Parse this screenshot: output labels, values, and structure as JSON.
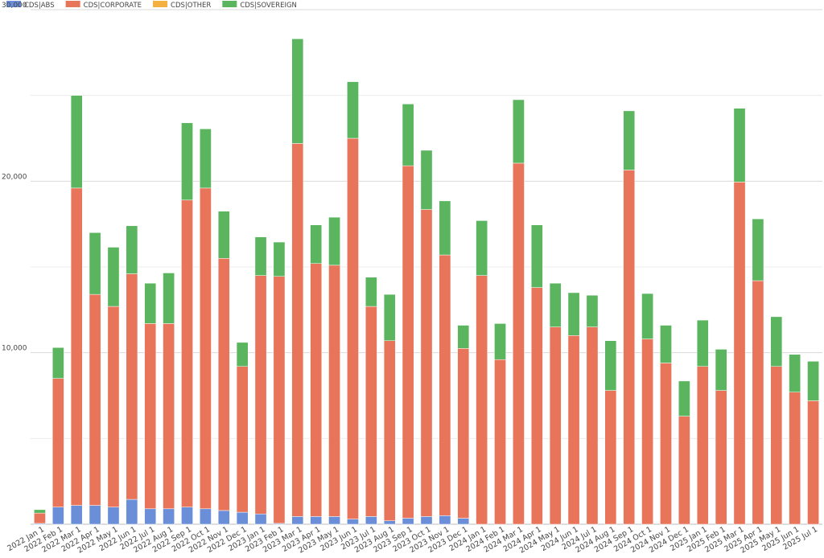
{
  "chart_data": {
    "type": "bar",
    "stacked": true,
    "title": "",
    "xlabel": "",
    "ylabel": "",
    "ylim": [
      0,
      30000
    ],
    "yticks": [
      {
        "value": 10000,
        "label": "10,000"
      },
      {
        "value": 20000,
        "label": "20,000"
      },
      {
        "value": 30000,
        "label": "30,000"
      }
    ],
    "grid": true,
    "legend_position": "top-left",
    "categories": [
      "2022 Jan 1",
      "2022 Feb 1",
      "2022 Mar 1",
      "2022 Apr 1",
      "2022 May 1",
      "2022 Jun 1",
      "2022 Jul 1",
      "2022 Aug 1",
      "2022 Sep 1",
      "2022 Oct 1",
      "2022 Nov 1",
      "2022 Dec 1",
      "2023 Jan 1",
      "2023 Feb 1",
      "2023 Mar 1",
      "2023 Apr 1",
      "2023 May 1",
      "2023 Jun 1",
      "2023 Jul 1",
      "2023 Aug 1",
      "2023 Sep 1",
      "2023 Oct 1",
      "2023 Nov 1",
      "2023 Dec 1",
      "2024 Jan 1",
      "2024 Feb 1",
      "2024 Mar 1",
      "2024 Apr 1",
      "2024 May 1",
      "2024 Jun 1",
      "2024 Jul 1",
      "2024 Aug 1",
      "2024 Sep 1",
      "2024 Oct 1",
      "2024 Nov 1",
      "2024 Dec 1",
      "2025 Jan 1",
      "2025 Feb 1",
      "2025 Mar 1",
      "2025 Apr 1",
      "2025 May 1",
      "2025 Jun 1",
      "2025 Jul 1"
    ],
    "series": [
      {
        "name": "CDS|ABS",
        "color": "#6a8fd8",
        "values": [
          50,
          1000,
          1100,
          1100,
          1000,
          1450,
          900,
          900,
          1000,
          900,
          800,
          700,
          600,
          50,
          450,
          450,
          450,
          300,
          450,
          200,
          350,
          450,
          500,
          350,
          0,
          0,
          0,
          0,
          0,
          0,
          0,
          0,
          0,
          0,
          0,
          0,
          0,
          0,
          0,
          0,
          0,
          0,
          0
        ]
      },
      {
        "name": "CDS|CORPORATE",
        "color": "#e8745a",
        "values": [
          600,
          7500,
          18500,
          12300,
          11700,
          13150,
          10800,
          10800,
          17900,
          18700,
          14700,
          8500,
          13900,
          14400,
          21750,
          14750,
          14650,
          22200,
          12250,
          10500,
          20550,
          17900,
          15200,
          9900,
          14500,
          9600,
          21050,
          13800,
          11500,
          11000,
          11500,
          7800,
          20650,
          10800,
          9400,
          6300,
          9200,
          7800,
          19950,
          14200,
          9200,
          7700,
          7200
        ]
      },
      {
        "name": "CDS|OTHER",
        "color": "#f5b042",
        "values": [
          0,
          0,
          0,
          0,
          0,
          0,
          0,
          0,
          0,
          0,
          0,
          0,
          0,
          0,
          0,
          0,
          0,
          0,
          0,
          0,
          0,
          0,
          0,
          0,
          0,
          0,
          0,
          0,
          0,
          0,
          0,
          0,
          0,
          0,
          0,
          0,
          0,
          0,
          0,
          0,
          0,
          0,
          0
        ]
      },
      {
        "name": "CDS|SOVEREIGN",
        "color": "#5ab55e",
        "values": [
          200,
          1800,
          5400,
          3600,
          3450,
          2800,
          2350,
          2950,
          4500,
          3450,
          2750,
          1400,
          2250,
          2000,
          6100,
          2250,
          2800,
          3300,
          1700,
          2700,
          3600,
          3450,
          3150,
          1350,
          3200,
          2100,
          3700,
          3650,
          2550,
          2500,
          1850,
          2900,
          3450,
          2650,
          2200,
          2050,
          2700,
          2400,
          4300,
          3600,
          2900,
          2200,
          2300
        ]
      }
    ]
  }
}
